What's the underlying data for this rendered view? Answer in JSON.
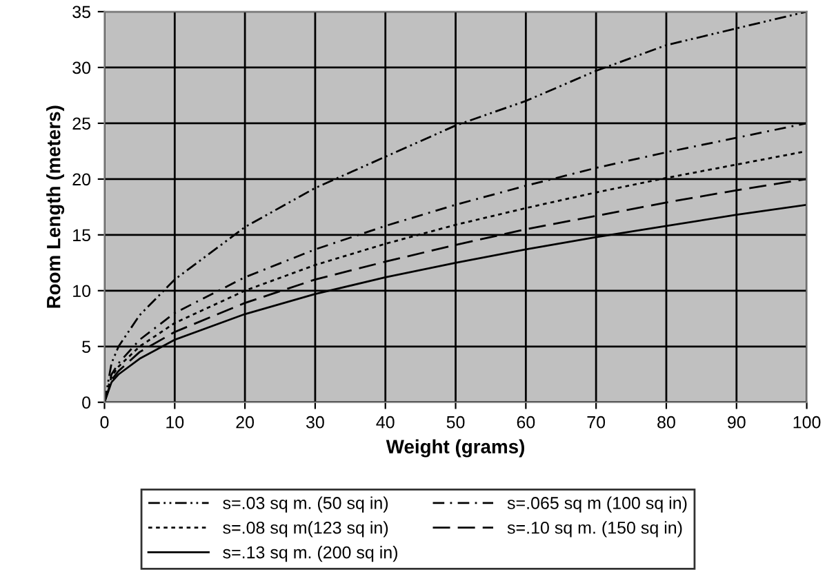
{
  "chart_data": {
    "type": "line",
    "xlabel": "Weight (grams)",
    "ylabel": "Room Length (meters)",
    "x": [
      0,
      1,
      2,
      5,
      10,
      20,
      30,
      40,
      50,
      60,
      70,
      80,
      90,
      100
    ],
    "series": [
      {
        "name": "s=.03 sq m. (50 sq in)",
        "color": "#000000",
        "line_style": "dashed",
        "values": [
          0,
          3.5,
          5,
          7.8,
          11,
          15.7,
          19.2,
          22,
          24.8,
          27,
          29.7,
          32,
          33.5,
          35
        ]
      },
      {
        "name": "s=.065 sq m (100 sq in)",
        "color": "#000000",
        "line_style": "dashed",
        "values": [
          0,
          2.5,
          3.5,
          5.6,
          8,
          11.2,
          13.7,
          15.8,
          17.7,
          19.4,
          21,
          22.4,
          23.7,
          25
        ]
      },
      {
        "name": "s=.08 sq m(123 sq in)",
        "color": "#000000",
        "line_style": "dotted",
        "values": [
          0,
          2.3,
          3.2,
          5,
          7.1,
          10,
          12.3,
          14.2,
          15.9,
          17.4,
          18.8,
          20.1,
          21.3,
          22.5
        ]
      },
      {
        "name": "s=.10 sq m. (150 sq in)",
        "color": "#000000",
        "line_style": "dashed",
        "values": [
          0,
          2,
          2.8,
          4.5,
          6.3,
          8.9,
          11,
          12.6,
          14.1,
          15.5,
          16.7,
          17.9,
          19,
          20
        ]
      },
      {
        "name": "s=.13 sq m. (200 sq in)",
        "color": "#000000",
        "line_style": "solid",
        "values": [
          0,
          1.8,
          2.5,
          3.9,
          5.6,
          7.9,
          9.7,
          11.2,
          12.5,
          13.7,
          14.8,
          15.8,
          16.8,
          17.7
        ]
      }
    ],
    "xlim": [
      0,
      100
    ],
    "xticks": [
      0,
      10,
      20,
      30,
      40,
      50,
      60,
      70,
      80,
      90,
      100
    ],
    "ylim": [
      0,
      35
    ],
    "yticks": [
      0,
      5,
      10,
      15,
      20,
      25,
      30,
      35
    ],
    "grid": true,
    "legend": "bottom"
  }
}
